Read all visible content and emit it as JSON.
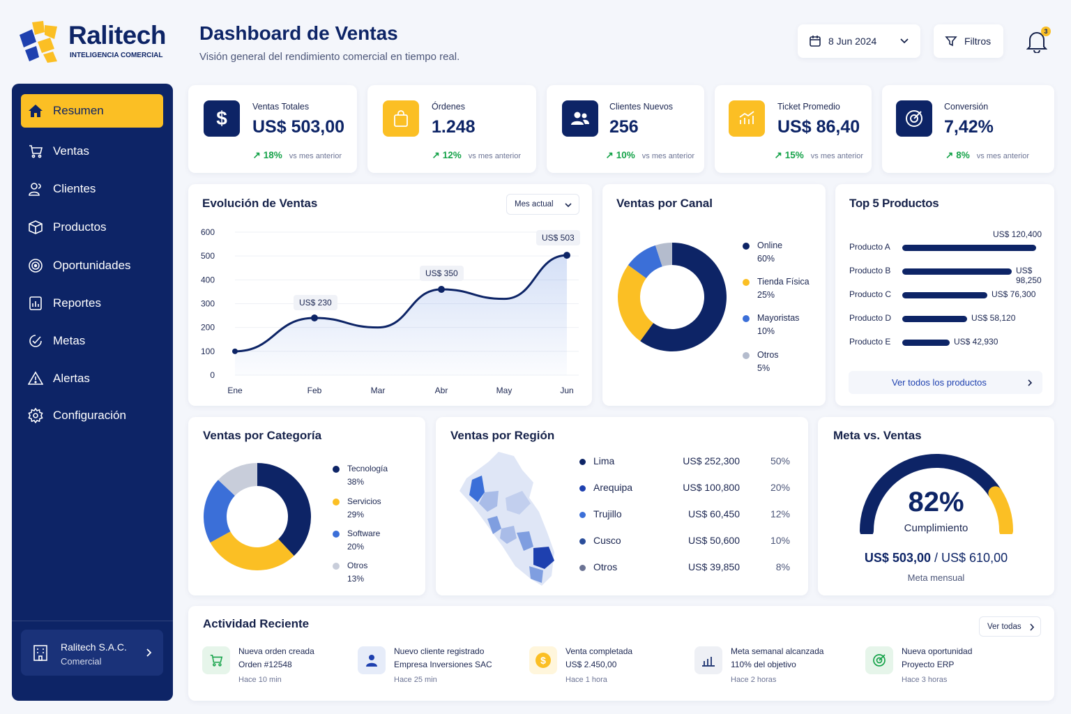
{
  "brand": {
    "name": "Ralitech",
    "tagline": "INTELIGENCIA COMERCIAL"
  },
  "header": {
    "title": "Dashboard de Ventas",
    "subtitle": "Visión general del rendimiento comercial en tiempo real.",
    "date": "8 Jun 2024",
    "filters_label": "Filtros",
    "notification_count": "3"
  },
  "sidebar": {
    "items": [
      {
        "label": "Resumen",
        "icon": "home-icon"
      },
      {
        "label": "Ventas",
        "icon": "cart-icon"
      },
      {
        "label": "Clientes",
        "icon": "users-icon"
      },
      {
        "label": "Productos",
        "icon": "box-icon"
      },
      {
        "label": "Oportunidades",
        "icon": "target-icon"
      },
      {
        "label": "Reportes",
        "icon": "report-icon"
      },
      {
        "label": "Metas",
        "icon": "goal-icon"
      },
      {
        "label": "Alertas",
        "icon": "alert-icon"
      },
      {
        "label": "Configuración",
        "icon": "gear-icon"
      }
    ],
    "company": {
      "name": "Ralitech S.A.C.",
      "role": "Comercial"
    }
  },
  "kpis": [
    {
      "label": "Ventas Totales",
      "value": "US$ 503,00",
      "change": "18%",
      "vs": "vs mes anterior",
      "icon": "dollar-icon",
      "color": "#0d2466"
    },
    {
      "label": "Órdenes",
      "value": "1.248",
      "change": "12%",
      "vs": "vs mes anterior",
      "icon": "shopping-bag-icon",
      "color": "#fbbf24"
    },
    {
      "label": "Clientes Nuevos",
      "value": "256",
      "change": "10%",
      "vs": "vs mes anterior",
      "icon": "users-icon",
      "color": "#0d2466"
    },
    {
      "label": "Ticket Promedio",
      "value": "US$ 86,40",
      "change": "15%",
      "vs": "vs mes anterior",
      "icon": "chart-icon",
      "color": "#fbbf24"
    },
    {
      "label": "Conversión",
      "value": "7,42%",
      "change": "8%",
      "vs": "vs mes anterior",
      "icon": "target-icon",
      "color": "#0d2466"
    }
  ],
  "sales_evolution": {
    "title": "Evolución de Ventas",
    "period": "Mes actual",
    "bubbles": [
      "US$ 230",
      "US$ 350",
      "US$ 503"
    ]
  },
  "channel": {
    "title": "Ventas por Canal",
    "items": [
      {
        "name": "Online",
        "pct": "60%",
        "value": 60,
        "color": "#0d2466"
      },
      {
        "name": "Tienda Física",
        "pct": "25%",
        "value": 25,
        "color": "#fbbf24"
      },
      {
        "name": "Mayoristas",
        "pct": "10%",
        "value": 10,
        "color": "#3b6fd8"
      },
      {
        "name": "Otros",
        "pct": "5%",
        "value": 5,
        "color": "#b4bccd"
      }
    ]
  },
  "top_products": {
    "title": "Top 5 Productos",
    "items": [
      {
        "name": "Producto A",
        "value": "US$ 120,400",
        "amount": 120400
      },
      {
        "name": "Producto B",
        "value": "US$ 98,250",
        "amount": 98250
      },
      {
        "name": "Producto C",
        "value": "US$ 76,300",
        "amount": 76300
      },
      {
        "name": "Producto D",
        "value": "US$ 58,120",
        "amount": 58120
      },
      {
        "name": "Producto E",
        "value": "US$ 42,930",
        "amount": 42930
      }
    ],
    "link": "Ver todos los productos"
  },
  "category": {
    "title": "Ventas por Categoría",
    "items": [
      {
        "name": "Tecnología",
        "pct": "38%",
        "value": 38,
        "color": "#0d2466"
      },
      {
        "name": "Servicios",
        "pct": "29%",
        "value": 29,
        "color": "#fbbf24"
      },
      {
        "name": "Software",
        "pct": "20%",
        "value": 20,
        "color": "#3b6fd8"
      },
      {
        "name": "Otros",
        "pct": "13%",
        "value": 13,
        "color": "#c8cdda"
      }
    ]
  },
  "region": {
    "title": "Ventas por Región",
    "items": [
      {
        "name": "Lima",
        "value": "US$ 252,300",
        "pct": "50%",
        "color": "#0d2466"
      },
      {
        "name": "Arequipa",
        "value": "US$ 100,800",
        "pct": "20%",
        "color": "#1e40af"
      },
      {
        "name": "Trujillo",
        "value": "US$ 60,450",
        "pct": "12%",
        "color": "#3b6fd8"
      },
      {
        "name": "Cusco",
        "value": "US$ 50,600",
        "pct": "10%",
        "color": "#2a4d9a"
      },
      {
        "name": "Otros",
        "value": "US$ 39,850",
        "pct": "8%",
        "color": "#6b7394"
      }
    ]
  },
  "goal": {
    "title": "Meta vs. Ventas",
    "percent_label": "82%",
    "percent": 82,
    "caption": "Cumplimiento",
    "amount": "US$ 503,00",
    "target": "US$ 610,00",
    "separator": "/",
    "note": "Meta mensual"
  },
  "activity": {
    "title": "Actividad Reciente",
    "view_all": "Ver todas",
    "items": [
      {
        "t1": "Nueva orden creada",
        "t2": "Orden #12548",
        "t3": "Hace 10 min",
        "icon": "cart-icon"
      },
      {
        "t1": "Nuevo cliente registrado",
        "t2": "Empresa Inversiones SAC",
        "t3": "Hace 25 min",
        "icon": "user-icon"
      },
      {
        "t1": "Venta completada",
        "t2": "US$ 2.450,00",
        "t3": "Hace 1 hora",
        "icon": "coin-icon"
      },
      {
        "t1": "Meta semanal alcanzada",
        "t2": "110% del objetivo",
        "t3": "Hace 2 horas",
        "icon": "bar-chart-icon"
      },
      {
        "t1": "Nueva oportunidad",
        "t2": "Proyecto ERP",
        "t3": "Hace 3 horas",
        "icon": "target-icon"
      }
    ]
  },
  "chart_data": {
    "type": "line",
    "categories": [
      "Ene",
      "Feb",
      "Mar",
      "Abr",
      "May",
      "Jun"
    ],
    "x": [
      "Ene",
      "Feb",
      "Mar",
      "Abr",
      "May",
      "Jun"
    ],
    "values": [
      100,
      240,
      200,
      360,
      320,
      503
    ],
    "title": "Evolución de Ventas",
    "ylim": [
      0,
      600
    ],
    "yticks": [
      0,
      100,
      200,
      300,
      400,
      500,
      600
    ],
    "grid": true
  }
}
